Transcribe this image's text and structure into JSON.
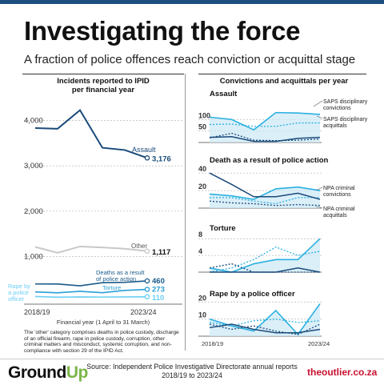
{
  "header": {
    "title": "Investigating the force",
    "subtitle": "A fraction of police offences reach conviction or acquittal stage"
  },
  "left_heading": "Incidents reported to IPID\nper financial year",
  "right_heading": "Convictions and acquittals per year",
  "note": "The 'other' category comprises deaths in police custody, discharge of an official firearm, rape in police custody, corruption, other criminal matters and misconduct, systemic corruption, and non-compliance with section 29 of the IPID Act.",
  "footer": {
    "logo_left_a": "Ground",
    "logo_left_b": "Up",
    "source_line1": "Source: Independent Police Investigative Directorate annual reports",
    "source_line2": "2018/19 to 2023/24",
    "logo_right": "theoutlier.co.za"
  },
  "colors": {
    "assault": "#1a4a7a",
    "other": "#c8c8c8",
    "deaths": "#1a5a8a",
    "torture": "#2a9fd6",
    "rape": "#6ccff6",
    "saps_conv": "#2ab0e0",
    "saps_acq": "#2ab0e0",
    "npa_conv": "#1a4a7a",
    "npa_acq": "#1a4a7a",
    "fill": "#cfe9f5"
  },
  "chart_data": [
    {
      "type": "line",
      "title": "Incidents reported to IPID per financial year",
      "xlabel": "Financial year (1 April to 31 March)",
      "x": [
        "2018/19",
        "2019/20",
        "2020/21",
        "2021/22",
        "2022/23",
        "2023/24"
      ],
      "x_tick_labels": [
        "2018/19",
        "2023/24"
      ],
      "ylim": [
        0,
        4400
      ],
      "y_ticks": [
        1000,
        2000,
        3000,
        4000
      ],
      "y_tick_labels": [
        "1,000",
        "2,000",
        "3,000",
        "4,000"
      ],
      "series": [
        {
          "name": "Assault",
          "values": [
            3835,
            3820,
            4230,
            3400,
            3350,
            3176
          ],
          "end_label": "3,176",
          "color": "#1a4a7a"
        },
        {
          "name": "Other",
          "values": [
            1210,
            1080,
            1220,
            1200,
            1170,
            1117
          ],
          "end_label": "1,117",
          "color": "#c8c8c8"
        },
        {
          "name": "Deaths as a result of police action",
          "values": [
            393,
            392,
            353,
            420,
            430,
            460
          ],
          "end_label": "460",
          "color": "#1a5a8a"
        },
        {
          "name": "Torture",
          "values": [
            217,
            197,
            230,
            200,
            250,
            273
          ],
          "end_label": "273",
          "color": "#2a9fd6"
        },
        {
          "name": "Rape by a police officer",
          "values": [
            116,
            100,
            108,
            104,
            108,
            110
          ],
          "end_label": "110",
          "color": "#6ccff6"
        }
      ],
      "series_labels": {
        "assault": "Assault",
        "other": "Other",
        "deaths": "Deaths as a result\nof police action",
        "torture": "Torture",
        "rape": "Rape by\na police\nofficer"
      }
    },
    {
      "type": "line",
      "title": "Assault",
      "x": [
        "2018/19",
        "2019/20",
        "2020/21",
        "2021/22",
        "2022/23",
        "2023/24"
      ],
      "ylim": [
        0,
        160
      ],
      "y_ticks": [
        50,
        100
      ],
      "y_tick_labels": [
        "50",
        "100"
      ],
      "series": [
        {
          "name": "SAPS disciplinary convictions",
          "values": [
            110,
            100,
            55,
            130,
            128,
            122
          ]
        },
        {
          "name": "SAPS disciplinary acquittals",
          "values": [
            78,
            80,
            70,
            70,
            85,
            85
          ]
        },
        {
          "name": "NPA criminal convictions",
          "values": [
            22,
            25,
            5,
            5,
            18,
            22
          ]
        },
        {
          "name": "NPA criminal acquittals",
          "values": [
            20,
            40,
            10,
            8,
            10,
            15
          ]
        }
      ]
    },
    {
      "type": "line",
      "title": "Death as a result of police action",
      "x": [
        "2018/19",
        "2019/20",
        "2020/21",
        "2021/22",
        "2022/23",
        "2023/24"
      ],
      "ylim": [
        0,
        42
      ],
      "y_ticks": [
        20,
        40
      ],
      "y_tick_labels": [
        "20",
        "40"
      ],
      "series": [
        {
          "name": "SAPS disciplinary convictions",
          "values": [
            16,
            14,
            10,
            22,
            24,
            20
          ]
        },
        {
          "name": "SAPS disciplinary acquittals",
          "values": [
            12,
            12,
            8,
            5,
            12,
            12
          ]
        },
        {
          "name": "NPA criminal convictions",
          "values": [
            40,
            27,
            13,
            13,
            17,
            10
          ]
        },
        {
          "name": "NPA criminal acquittals",
          "values": [
            8,
            6,
            5,
            3,
            4,
            3
          ]
        }
      ]
    },
    {
      "type": "line",
      "title": "Torture",
      "x": [
        "2018/19",
        "2019/20",
        "2020/21",
        "2021/22",
        "2022/23",
        "2023/24"
      ],
      "ylim": [
        0,
        9
      ],
      "y_ticks": [
        4,
        8
      ],
      "y_tick_labels": [
        "4",
        "8"
      ],
      "series": [
        {
          "name": "SAPS disciplinary convictions",
          "values": [
            1,
            0,
            2,
            3,
            3,
            8
          ]
        },
        {
          "name": "SAPS disciplinary acquittals",
          "values": [
            0,
            1,
            3,
            6,
            4,
            5
          ]
        },
        {
          "name": "NPA criminal convictions",
          "values": [
            0,
            0,
            0,
            0,
            1,
            0
          ]
        },
        {
          "name": "NPA criminal acquittals",
          "values": [
            1,
            2,
            0,
            0,
            0,
            0
          ]
        }
      ]
    },
    {
      "type": "line",
      "title": "Rape by a police officer",
      "x": [
        "2018/19",
        "2019/20",
        "2020/21",
        "2021/22",
        "2022/23",
        "2023/24"
      ],
      "x_tick_labels": [
        "2018/19",
        "2023/24"
      ],
      "ylim": [
        0,
        22
      ],
      "y_ticks": [
        10,
        20
      ],
      "y_tick_labels": [
        "10",
        "20"
      ],
      "series": [
        {
          "name": "SAPS disciplinary convictions",
          "values": [
            10,
            6,
            3,
            15,
            1,
            19
          ]
        },
        {
          "name": "SAPS disciplinary acquittals",
          "values": [
            8,
            6,
            9,
            10,
            8,
            9
          ]
        },
        {
          "name": "NPA criminal convictions",
          "values": [
            5,
            7,
            4,
            2,
            2,
            4
          ]
        },
        {
          "name": "NPA criminal acquittals",
          "values": [
            7,
            4,
            6,
            3,
            1,
            7
          ]
        }
      ]
    }
  ],
  "right_legend": {
    "saps_conv": "SAPS disciplinary\nconvictions",
    "saps_acq": "SAPS disciplinary\nacquittals",
    "npa_conv": "NPA criminal\nconvictions",
    "npa_acq": "NPA criminal\nacquittals"
  }
}
